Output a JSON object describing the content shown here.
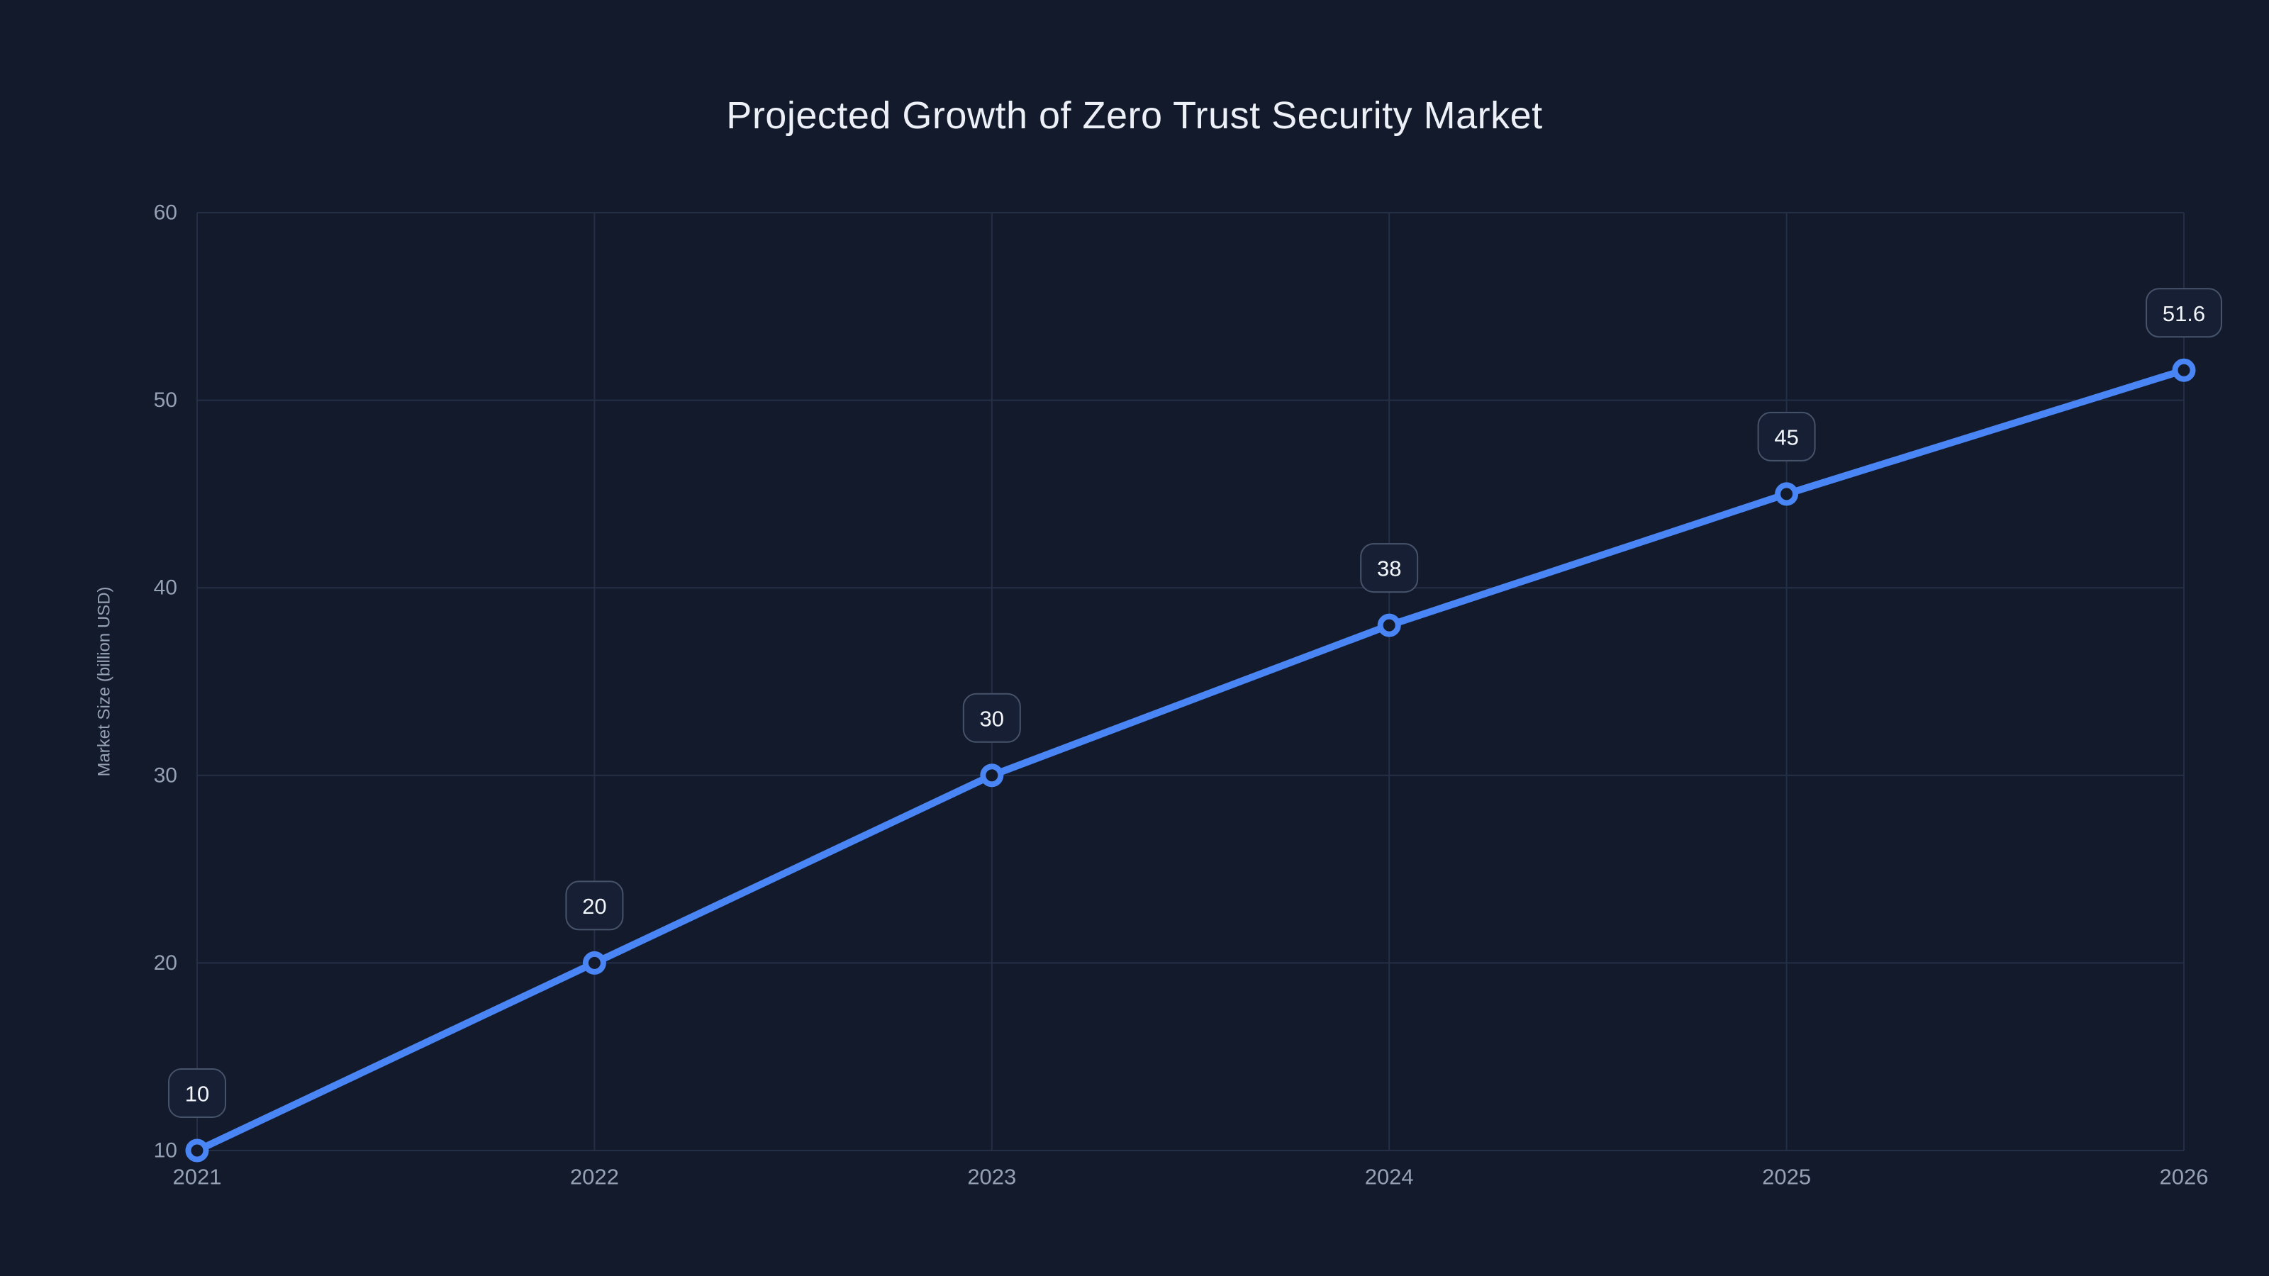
{
  "page": {
    "background_color": "#121A2C",
    "title": "Projected Growth of Zero Trust Security Market",
    "title_color": "#EDF1F7"
  },
  "chart_data": {
    "type": "line",
    "title": "Projected Growth of Zero Trust Security Market",
    "x": [
      "2021",
      "2022",
      "2023",
      "2024",
      "2025",
      "2026"
    ],
    "series": [
      {
        "name": "Market Size",
        "values": [
          10,
          20,
          30,
          38,
          45,
          51.6
        ],
        "point_labels": [
          "10",
          "20",
          "30",
          "38",
          "45",
          "51.6"
        ]
      }
    ],
    "xlabel": "",
    "ylabel": "Market Size (billion USD)",
    "ylim": [
      10,
      60
    ],
    "yticks": [
      10,
      20,
      30,
      40,
      50,
      60
    ],
    "grid": "on",
    "legend": "none",
    "colors": {
      "line": "#4A85F5",
      "marker_ring": "#4A85F5",
      "marker_fill": "#121A2C",
      "grid_line": "#242F46",
      "axis_text": "#95A1B5",
      "axis_title_text": "#95A1B5",
      "label_pill_bg": "#161F33",
      "label_pill_border": "#47536A",
      "label_pill_text": "#F2F5FA"
    }
  }
}
